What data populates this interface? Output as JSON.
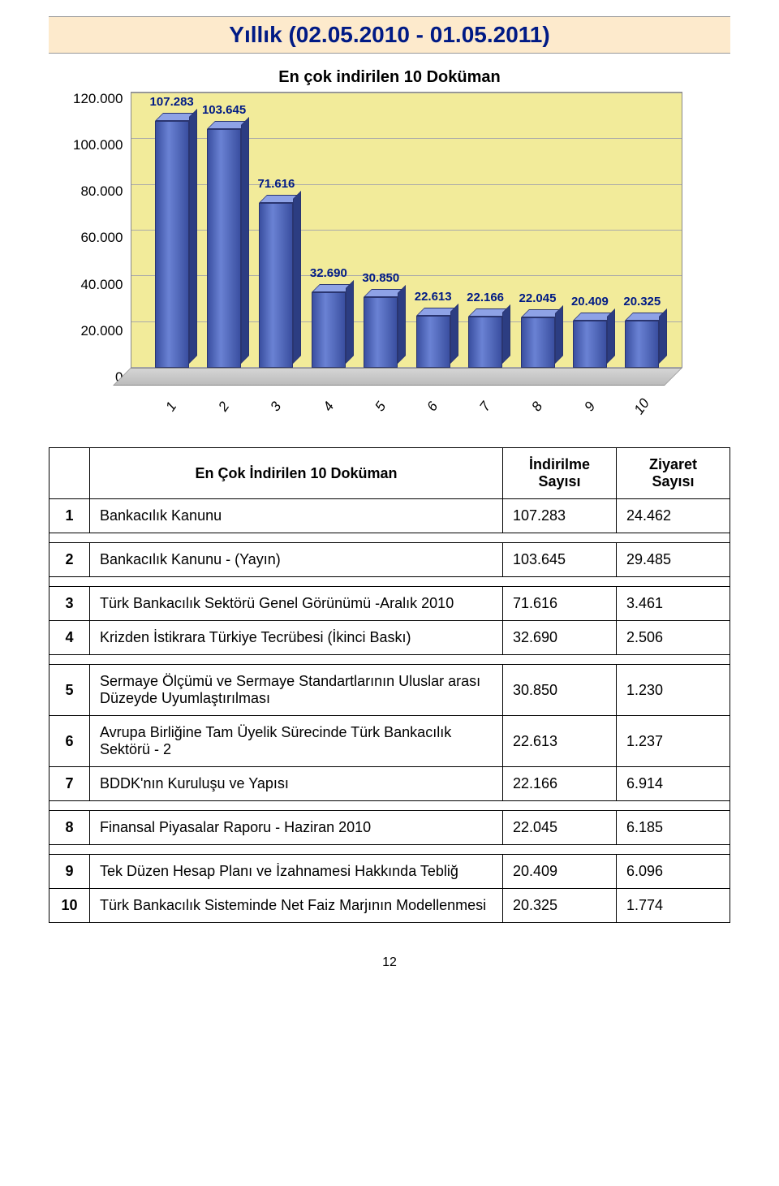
{
  "header": {
    "title": "Yıllık (02.05.2010 - 01.05.2011)"
  },
  "chart": {
    "type": "bar",
    "title": "En çok indirilen 10 Doküman",
    "y_ticks": [
      "120.000",
      "100.000",
      "80.000",
      "60.000",
      "40.000",
      "20.000",
      "0"
    ],
    "y_max": 120000,
    "categories": [
      "1",
      "2",
      "3",
      "4",
      "5",
      "6",
      "7",
      "8",
      "9",
      "10"
    ],
    "bars": [
      {
        "label": "107.283",
        "value": 107283
      },
      {
        "label": "103.645",
        "value": 103645
      },
      {
        "label": "71.616",
        "value": 71616
      },
      {
        "label": "32.690",
        "value": 32690
      },
      {
        "label": "30.850",
        "value": 30850
      },
      {
        "label": "22.613",
        "value": 22613
      },
      {
        "label": "22.166",
        "value": 22166
      },
      {
        "label": "22.045",
        "value": 22045
      },
      {
        "label": "20.409",
        "value": 20409
      },
      {
        "label": "20.325",
        "value": 20325
      }
    ],
    "bar_color_front": "#4a5fb0",
    "bar_color_top": "#8ea2e6",
    "bar_color_side": "#2c3d82",
    "back_wall_color": "#f2eb9a",
    "floor_color": "#c8c8c8",
    "grid_color": "#aaaaaa",
    "title_color": "#000000",
    "label_color": "#001a85",
    "title_fontsize": 20,
    "label_fontsize": 15,
    "axis_fontsize": 17
  },
  "table": {
    "header": {
      "name": "En Çok İndirilen 10 Doküman",
      "col_downloads": "İndirilme Sayısı",
      "col_visits": "Ziyaret Sayısı"
    },
    "rows": [
      {
        "idx": "1",
        "name": "Bankacılık Kanunu",
        "downloads": "107.283",
        "visits": "24.462"
      },
      {
        "idx": "2",
        "name": "Bankacılık Kanunu - (Yayın)",
        "downloads": "103.645",
        "visits": "29.485"
      },
      {
        "idx": "3",
        "name": "Türk Bankacılık Sektörü Genel Görünümü -Aralık 2010",
        "downloads": "71.616",
        "visits": "3.461"
      },
      {
        "idx": "4",
        "name": "Krizden İstikrara Türkiye Tecrübesi (İkinci Baskı)",
        "downloads": "32.690",
        "visits": "2.506"
      },
      {
        "idx": "5",
        "name": "Sermaye Ölçümü ve Sermaye Standartlarının Uluslar arası Düzeyde Uyumlaştırılması",
        "downloads": "30.850",
        "visits": "1.230"
      },
      {
        "idx": "6",
        "name": "Avrupa Birliğine Tam Üyelik Sürecinde Türk Bankacılık Sektörü - 2",
        "downloads": "22.613",
        "visits": "1.237"
      },
      {
        "idx": "7",
        "name": "BDDK'nın Kuruluşu ve Yapısı",
        "downloads": "22.166",
        "visits": "6.914"
      },
      {
        "idx": "8",
        "name": "Finansal Piyasalar Raporu - Haziran 2010",
        "downloads": "22.045",
        "visits": "6.185"
      },
      {
        "idx": "9",
        "name": "Tek Düzen Hesap Planı ve İzahnamesi Hakkında Tebliğ",
        "downloads": "20.409",
        "visits": "6.096"
      },
      {
        "idx": "10",
        "name": "Türk Bankacılık Sisteminde Net Faiz Marjının Modellenmesi",
        "downloads": "20.325",
        "visits": "1.774"
      }
    ],
    "gap_after": [
      0,
      1,
      3,
      6,
      7
    ]
  },
  "footer": {
    "page_number": "12"
  }
}
